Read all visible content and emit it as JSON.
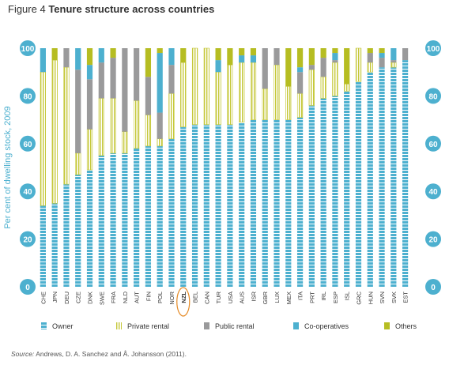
{
  "figure": {
    "number": "Figure 4",
    "title": "Tenure structure across countries",
    "source_label": "Source:",
    "source_text": "Andrews, D. A. Sanchez and Å. Johansson (2011)."
  },
  "chart_data": {
    "type": "bar",
    "stacked": true,
    "title": "Tenure structure across countries",
    "ylabel": "Per cent of dwelling stock, 2009",
    "xlabel": "",
    "ylim": [
      0,
      100
    ],
    "yticks": [
      0,
      20,
      40,
      60,
      80,
      100
    ],
    "highlighted_category": "NZL",
    "legend_position": "bottom",
    "categories": [
      "CHE",
      "JPN",
      "DEU",
      "CZE",
      "DNK",
      "SWE",
      "FRA",
      "NLD",
      "AUT",
      "FIN",
      "POL",
      "NOR",
      "NZL",
      "BEL",
      "CAN",
      "TUR",
      "USA",
      "AUS",
      "ISR",
      "GBR",
      "LUX",
      "MEX",
      "ITA",
      "PRT",
      "IRL",
      "ESP",
      "ISL",
      "GRC",
      "HUN",
      "SVN",
      "SVK",
      "EST"
    ],
    "series": [
      {
        "name": "Owner",
        "color": "#4db0cf",
        "pattern": "dashed",
        "values": [
          34,
          35,
          43,
          47,
          49,
          55,
          56,
          56,
          58,
          59,
          59,
          62,
          67,
          68,
          68,
          68,
          68,
          69,
          70,
          70,
          70,
          70,
          71,
          76,
          79,
          80,
          82,
          86,
          90,
          92,
          92,
          95
        ]
      },
      {
        "name": "Private rental",
        "color": "#c5c83a",
        "pattern": "vertical-lines",
        "values": [
          56,
          60,
          49,
          9,
          17,
          24,
          23,
          9,
          20,
          13,
          3,
          19,
          27,
          32,
          32,
          22,
          25,
          25,
          24,
          13,
          23,
          14,
          10,
          15,
          9,
          14,
          3,
          14,
          4,
          0,
          2,
          0
        ]
      },
      {
        "name": "Public rental",
        "color": "#9a9a9b",
        "pattern": "solid",
        "values": [
          0,
          0,
          8,
          35,
          21,
          15,
          17,
          35,
          22,
          16,
          11,
          12,
          0,
          0,
          0,
          0,
          0,
          0,
          0,
          17,
          7,
          0,
          9,
          2,
          8,
          1,
          0,
          0,
          4,
          4,
          1,
          5
        ]
      },
      {
        "name": "Co-operatives",
        "color": "#4db0cf",
        "pattern": "solid",
        "values": [
          10,
          0,
          0,
          9,
          6,
          6,
          0,
          0,
          0,
          0,
          25,
          7,
          0,
          0,
          0,
          5,
          0,
          3,
          3,
          0,
          0,
          0,
          2,
          0,
          0,
          3,
          0,
          0,
          0,
          2,
          5,
          0
        ]
      },
      {
        "name": "Others",
        "color": "#b6bd22",
        "pattern": "solid",
        "values": [
          0,
          5,
          0,
          0,
          7,
          0,
          4,
          0,
          0,
          12,
          2,
          0,
          6,
          0,
          0,
          5,
          7,
          3,
          3,
          0,
          0,
          16,
          8,
          7,
          4,
          2,
          15,
          0,
          2,
          2,
          0,
          0
        ]
      }
    ]
  }
}
